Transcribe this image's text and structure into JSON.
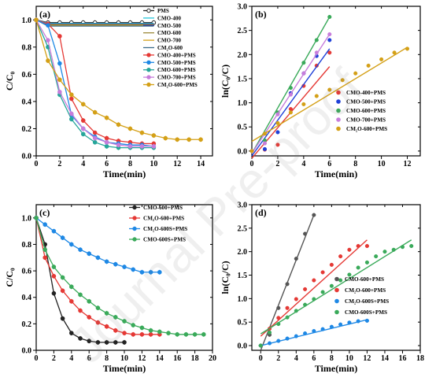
{
  "chart_data": [
    {
      "panel": "(a)",
      "type": "line",
      "xlabel": "Time(min)",
      "ylabel": "C/C₀",
      "xlim": [
        0,
        15
      ],
      "ylim": [
        0,
        1.1
      ],
      "xticks": [
        0,
        2,
        4,
        6,
        8,
        10,
        12,
        14
      ],
      "yticks": [
        0.0,
        0.2,
        0.4,
        0.6,
        0.8,
        1.0
      ],
      "legend_position": "top-right",
      "series": [
        {
          "name": "PMS",
          "color": "#222222",
          "marker": "circle-open",
          "x": [
            0,
            1,
            2,
            3,
            4,
            5,
            6,
            7,
            8,
            9,
            10
          ],
          "y": [
            1.0,
            0.98,
            0.98,
            0.98,
            0.98,
            0.98,
            0.98,
            0.98,
            0.98,
            0.98,
            0.98
          ]
        },
        {
          "name": "CMO-400",
          "color": "#26c6da",
          "marker": "none",
          "x": [
            0,
            1,
            2,
            3,
            4,
            5,
            6,
            7,
            8,
            9,
            10
          ],
          "y": [
            1.0,
            0.975,
            0.975,
            0.975,
            0.975,
            0.975,
            0.975,
            0.975,
            0.975,
            0.975,
            0.975
          ]
        },
        {
          "name": "CMO-500",
          "color": "#2c3e9c",
          "marker": "none",
          "x": [
            0,
            1,
            2,
            3,
            4,
            5,
            6,
            7,
            8,
            9,
            10
          ],
          "y": [
            1.0,
            0.97,
            0.97,
            0.97,
            0.97,
            0.97,
            0.97,
            0.97,
            0.97,
            0.97,
            0.97
          ]
        },
        {
          "name": "CMO-600",
          "color": "#9c8a3a",
          "marker": "none",
          "x": [
            0,
            1,
            2,
            3,
            4,
            5,
            6,
            7,
            8,
            9,
            10
          ],
          "y": [
            1.0,
            0.965,
            0.965,
            0.965,
            0.965,
            0.965,
            0.965,
            0.965,
            0.965,
            0.965,
            0.965
          ]
        },
        {
          "name": "CMO-700",
          "color": "#d4a017",
          "marker": "none",
          "x": [
            0,
            1,
            2,
            3,
            4,
            5,
            6,
            7,
            8,
            9,
            10
          ],
          "y": [
            1.0,
            0.96,
            0.96,
            0.96,
            0.96,
            0.96,
            0.96,
            0.96,
            0.96,
            0.96,
            0.96
          ]
        },
        {
          "name": "CM₂O-600",
          "color": "#3a6b8a",
          "marker": "none",
          "x": [
            0,
            1,
            2,
            3,
            4,
            5,
            6,
            7,
            8,
            9,
            10
          ],
          "y": [
            1.0,
            0.955,
            0.955,
            0.955,
            0.955,
            0.955,
            0.955,
            0.955,
            0.955,
            0.955,
            0.955
          ]
        },
        {
          "name": "CMO-400+PMS",
          "color": "#e53935",
          "marker": "circle",
          "x": [
            0,
            1,
            2,
            3,
            4,
            5,
            6,
            7,
            8,
            9,
            10
          ],
          "y": [
            1.0,
            0.97,
            0.88,
            0.42,
            0.26,
            0.17,
            0.13,
            0.11,
            0.1,
            0.09,
            0.09
          ]
        },
        {
          "name": "CMO-500+PMS",
          "color": "#1e88e5",
          "marker": "circle",
          "x": [
            0,
            1,
            2,
            3,
            4,
            5,
            6,
            7,
            8,
            9,
            10
          ],
          "y": [
            1.0,
            0.96,
            0.68,
            0.3,
            0.2,
            0.14,
            0.1,
            0.09,
            0.08,
            0.08,
            0.07
          ]
        },
        {
          "name": "CMO-600+PMS",
          "color": "#26a69a",
          "marker": "circle",
          "x": [
            0,
            1,
            2,
            3,
            4,
            5,
            6,
            7,
            8,
            9,
            10
          ],
          "y": [
            1.0,
            0.8,
            0.45,
            0.27,
            0.16,
            0.1,
            0.07,
            0.06,
            0.06,
            0.06,
            0.06
          ]
        },
        {
          "name": "CMO-700+PMS",
          "color": "#c77ddb",
          "marker": "circle",
          "x": [
            0,
            1,
            2,
            3,
            4,
            5,
            6,
            7,
            8,
            9,
            10
          ],
          "y": [
            1.0,
            0.85,
            0.47,
            0.31,
            0.2,
            0.13,
            0.1,
            0.08,
            0.07,
            0.07,
            0.07
          ]
        },
        {
          "name": "CM₂O-600+PMS",
          "color": "#d4a017",
          "marker": "circle",
          "x": [
            0,
            1,
            2,
            3,
            4,
            5,
            6,
            7,
            8,
            9,
            10,
            11,
            12,
            13,
            14
          ],
          "y": [
            1.0,
            0.7,
            0.56,
            0.45,
            0.38,
            0.32,
            0.28,
            0.23,
            0.2,
            0.17,
            0.15,
            0.13,
            0.12,
            0.12,
            0.12
          ]
        }
      ]
    },
    {
      "panel": "(b)",
      "type": "scatter",
      "xlabel": "Time(min)",
      "ylabel": "ln(C₀/C)",
      "xlim": [
        0,
        13
      ],
      "ylim": [
        -0.1,
        3.0
      ],
      "xticks": [
        0,
        2,
        4,
        6,
        8,
        10,
        12
      ],
      "yticks": [
        0.0,
        0.5,
        1.0,
        1.5,
        2.0,
        2.5,
        3.0
      ],
      "legend_position": "bottom-right",
      "series": [
        {
          "name": "CMO-400+PMS",
          "color": "#e53935",
          "x": [
            0,
            1,
            2,
            3,
            4,
            5,
            6
          ],
          "y": [
            0.0,
            0.03,
            0.13,
            0.87,
            1.35,
            1.77,
            2.04
          ],
          "fit": [
            [
              0,
              -0.15
            ],
            [
              6,
              1.75
            ]
          ]
        },
        {
          "name": "CMO-500+PMS",
          "color": "#1e40d8",
          "x": [
            0,
            1,
            2,
            3,
            4,
            5,
            6
          ],
          "y": [
            0.0,
            0.04,
            0.39,
            1.2,
            1.61,
            1.97,
            2.3
          ],
          "fit": [
            [
              0,
              -0.1
            ],
            [
              6,
              2.12
            ]
          ]
        },
        {
          "name": "CMO-600+PMS",
          "color": "#3aaa5a",
          "x": [
            0,
            1,
            2,
            3,
            4,
            5,
            6
          ],
          "y": [
            0.0,
            0.22,
            0.8,
            1.31,
            1.83,
            2.3,
            2.78
          ],
          "fit": [
            [
              0,
              -0.05
            ],
            [
              6,
              2.78
            ]
          ]
        },
        {
          "name": "CMO-700+PMS",
          "color": "#c77ddb",
          "x": [
            0,
            1,
            2,
            3,
            4,
            5,
            6
          ],
          "y": [
            0.0,
            0.16,
            0.76,
            1.17,
            1.61,
            2.04,
            2.42
          ],
          "fit": [
            [
              0,
              -0.05
            ],
            [
              6,
              2.42
            ]
          ]
        },
        {
          "name": "CM₂O-600+PMS",
          "color": "#d4a017",
          "x": [
            0,
            1,
            2,
            3,
            4,
            5,
            6,
            7,
            8,
            9,
            10,
            11,
            12
          ],
          "y": [
            0.0,
            0.36,
            0.58,
            0.8,
            0.97,
            1.14,
            1.27,
            1.47,
            1.61,
            1.77,
            1.9,
            2.04,
            2.12
          ],
          "fit": [
            [
              0,
              0.2
            ],
            [
              12,
              2.15
            ]
          ]
        }
      ]
    },
    {
      "panel": "(c)",
      "type": "line",
      "xlabel": "Time(min)",
      "ylabel": "C/C₀",
      "xlim": [
        0,
        20
      ],
      "ylim": [
        0,
        1.1
      ],
      "xticks": [
        0,
        2,
        4,
        6,
        8,
        10,
        12,
        14,
        16,
        18,
        20
      ],
      "yticks": [
        0.0,
        0.2,
        0.4,
        0.6,
        0.8,
        1.0
      ],
      "legend_position": "top-right",
      "series": [
        {
          "name": "CMO-600+PMS",
          "color": "#222222",
          "x": [
            0,
            1,
            2,
            3,
            4,
            5,
            6,
            7,
            8,
            9,
            10
          ],
          "y": [
            1.0,
            0.8,
            0.43,
            0.24,
            0.13,
            0.09,
            0.07,
            0.06,
            0.06,
            0.06,
            0.06
          ]
        },
        {
          "name": "CM₂O-600+PMS",
          "color": "#e53935",
          "x": [
            0,
            1,
            2,
            3,
            4,
            5,
            6,
            7,
            8,
            9,
            10,
            11,
            12,
            13,
            14
          ],
          "y": [
            1.0,
            0.7,
            0.56,
            0.45,
            0.37,
            0.3,
            0.25,
            0.21,
            0.18,
            0.15,
            0.13,
            0.12,
            0.12,
            0.12,
            0.12
          ]
        },
        {
          "name": "CM₂O-600S+PMS",
          "color": "#1e88e5",
          "x": [
            0,
            1,
            2,
            3,
            4,
            5,
            6,
            7,
            8,
            9,
            10,
            11,
            12,
            13,
            14
          ],
          "y": [
            1.0,
            0.95,
            0.9,
            0.85,
            0.8,
            0.76,
            0.73,
            0.7,
            0.67,
            0.65,
            0.63,
            0.61,
            0.59,
            0.59,
            0.59
          ]
        },
        {
          "name": "CMO-600S+PMS",
          "color": "#3aaa5a",
          "x": [
            0,
            1,
            2,
            3,
            4,
            5,
            6,
            7,
            8,
            9,
            10,
            11,
            12,
            13,
            14,
            15,
            16,
            17,
            18,
            19
          ],
          "y": [
            1.0,
            0.76,
            0.63,
            0.55,
            0.48,
            0.42,
            0.37,
            0.32,
            0.28,
            0.25,
            0.22,
            0.19,
            0.17,
            0.15,
            0.14,
            0.13,
            0.12,
            0.12,
            0.12,
            0.12
          ]
        }
      ]
    },
    {
      "panel": "(d)",
      "type": "scatter",
      "xlabel": "Time(min)",
      "ylabel": "ln(C₀/C)",
      "xlim": [
        -1,
        18
      ],
      "ylim": [
        -0.1,
        3.0
      ],
      "xticks": [
        0,
        2,
        4,
        6,
        8,
        10,
        12,
        14,
        16,
        18
      ],
      "yticks": [
        0.0,
        0.5,
        1.0,
        1.5,
        2.0,
        2.5,
        3.0
      ],
      "legend_position": "bottom-right",
      "series": [
        {
          "name": "CMO-600+PMS",
          "color": "#555555",
          "x": [
            0,
            1,
            2,
            3,
            4,
            5,
            6
          ],
          "y": [
            0.0,
            0.23,
            0.8,
            1.31,
            1.85,
            2.38,
            2.78
          ],
          "fit": [
            [
              0,
              -0.1
            ],
            [
              6,
              2.78
            ]
          ]
        },
        {
          "name": "CM₂O-600+PMS",
          "color": "#e53935",
          "x": [
            0,
            1,
            2,
            3,
            4,
            5,
            6,
            7,
            8,
            9,
            10,
            11,
            12
          ],
          "y": [
            0.0,
            0.36,
            0.59,
            0.8,
            0.99,
            1.2,
            1.39,
            1.56,
            1.72,
            1.9,
            2.04,
            2.12,
            2.12
          ],
          "fit": [
            [
              0,
              0.2
            ],
            [
              12,
              2.25
            ]
          ]
        },
        {
          "name": "CM₂O-600S+PMS",
          "color": "#1e88e5",
          "x": [
            0,
            1,
            2,
            3,
            4,
            5,
            6,
            7,
            8,
            9,
            10,
            11,
            12
          ],
          "y": [
            0.0,
            0.05,
            0.1,
            0.15,
            0.2,
            0.26,
            0.31,
            0.35,
            0.4,
            0.45,
            0.49,
            0.52,
            0.53
          ],
          "fit": [
            [
              0,
              0.0
            ],
            [
              12,
              0.55
            ]
          ]
        },
        {
          "name": "CMO-600S+PMS",
          "color": "#3aaa5a",
          "x": [
            0,
            1,
            2,
            3,
            4,
            5,
            6,
            7,
            8,
            9,
            10,
            11,
            12,
            13,
            14,
            15,
            16,
            17
          ],
          "y": [
            0.0,
            0.28,
            0.46,
            0.6,
            0.74,
            0.87,
            0.99,
            1.14,
            1.27,
            1.39,
            1.51,
            1.66,
            1.77,
            1.9,
            2.0,
            2.04,
            2.1,
            2.12
          ],
          "fit": [
            [
              0,
              0.25
            ],
            [
              17,
              2.25
            ]
          ]
        }
      ]
    }
  ],
  "watermark": "Journal Pre-proof"
}
